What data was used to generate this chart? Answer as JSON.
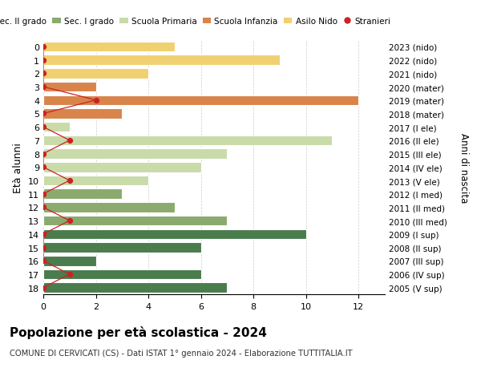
{
  "ages": [
    18,
    17,
    16,
    15,
    14,
    13,
    12,
    11,
    10,
    9,
    8,
    7,
    6,
    5,
    4,
    3,
    2,
    1,
    0
  ],
  "years": [
    "2005 (V sup)",
    "2006 (IV sup)",
    "2007 (III sup)",
    "2008 (II sup)",
    "2009 (I sup)",
    "2010 (III med)",
    "2011 (II med)",
    "2012 (I med)",
    "2013 (V ele)",
    "2014 (IV ele)",
    "2015 (III ele)",
    "2016 (II ele)",
    "2017 (I ele)",
    "2018 (mater)",
    "2019 (mater)",
    "2020 (mater)",
    "2021 (nido)",
    "2022 (nido)",
    "2023 (nido)"
  ],
  "values": [
    7,
    6,
    2,
    6,
    10,
    7,
    5,
    3,
    4,
    6,
    7,
    11,
    1,
    3,
    12,
    2,
    4,
    9,
    5
  ],
  "bar_colors": [
    "#4a7c4e",
    "#4a7c4e",
    "#4a7c4e",
    "#4a7c4e",
    "#4a7c4e",
    "#8aaa6e",
    "#8aaa6e",
    "#8aaa6e",
    "#c8dba8",
    "#c8dba8",
    "#c8dba8",
    "#c8dba8",
    "#c8dba8",
    "#d9844a",
    "#d9844a",
    "#d9844a",
    "#f0d070",
    "#f0d070",
    "#f0d070"
  ],
  "stranieri_x": [
    0,
    1,
    0,
    0,
    0,
    1,
    0,
    0,
    1,
    0,
    0,
    1,
    0,
    0,
    2,
    0,
    0,
    0,
    0
  ],
  "stranieri_color": "#cc2222",
  "legend_labels": [
    "Sec. II grado",
    "Sec. I grado",
    "Scuola Primaria",
    "Scuola Infanzia",
    "Asilo Nido",
    "Stranieri"
  ],
  "legend_colors": [
    "#4a7c4e",
    "#8aaa6e",
    "#c8dba8",
    "#d9844a",
    "#f0d070",
    "#cc2222"
  ],
  "title": "Popolazione per età scolastica - 2024",
  "subtitle": "COMUNE DI CERVICATI (CS) - Dati ISTAT 1° gennaio 2024 - Elaborazione TUTTITALIA.IT",
  "ylabel_left": "Età alunni",
  "ylabel_right": "Anni di nascita",
  "xlim": [
    0,
    13
  ],
  "xticks": [
    0,
    2,
    4,
    6,
    8,
    10,
    12
  ],
  "background_color": "#ffffff",
  "grid_color": "#cccccc"
}
